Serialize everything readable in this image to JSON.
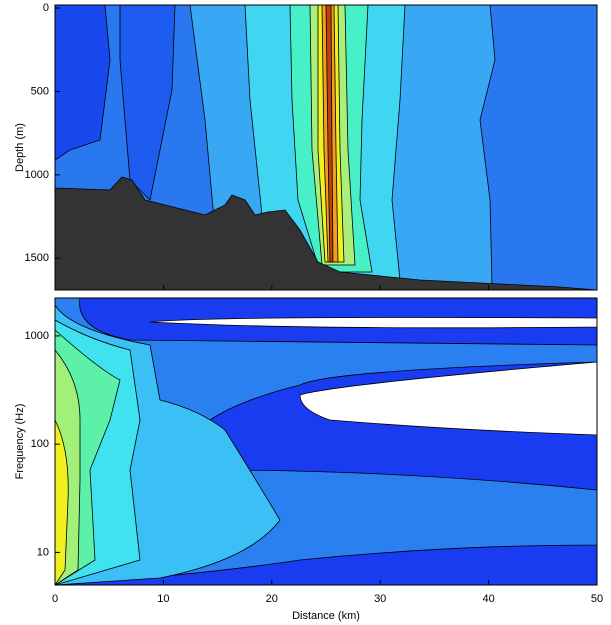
{
  "chart_data": [
    {
      "type": "contour",
      "ylabel": "Depth (m)",
      "ylim": [
        -18,
        1690
      ],
      "yticks": [
        0,
        500,
        1000,
        1500
      ],
      "yinvert": true,
      "xlim": [
        0,
        50
      ],
      "xticks": [
        0,
        10,
        20,
        30,
        40,
        50
      ]
    },
    {
      "type": "contour",
      "ylabel": "Frequency (Hz)",
      "xlabel": "Distance (km)",
      "ylim": [
        5,
        2240
      ],
      "yscale": "log",
      "yticks": [
        10,
        100,
        1000
      ],
      "xlim": [
        0,
        50
      ],
      "xticks": [
        0,
        10,
        20,
        30,
        40,
        50
      ]
    }
  ]
}
